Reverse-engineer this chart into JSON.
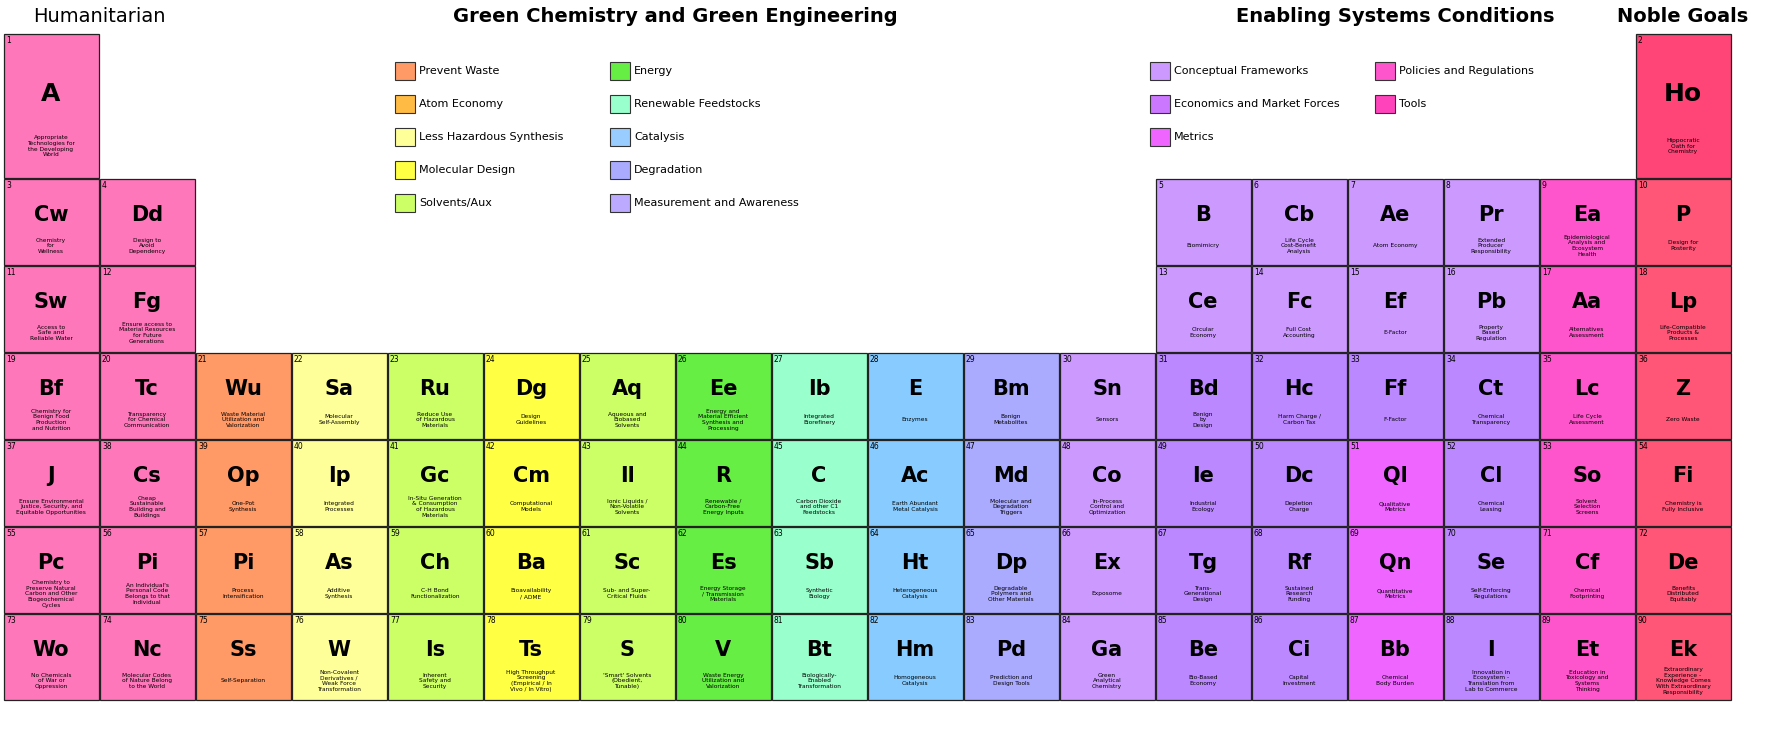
{
  "title_humanitarian": "Humanitarian",
  "title_green": "Green Chemistry and Green Engineering",
  "title_enabling": "Enabling Systems Conditions",
  "title_noble": "Noble Goals",
  "elements": [
    {
      "num": "1",
      "sym": "A",
      "name": "Appropriate\nTechnologies for\nthe Developing\nWorld",
      "color": "#FF77BB",
      "row": 0,
      "col": 0,
      "rowspan": 2
    },
    {
      "num": "2",
      "sym": "Ho",
      "name": "Hippocratic\nOath for\nChemistry",
      "color": "#FF4477",
      "row": 0,
      "col": 17,
      "rowspan": 2
    },
    {
      "num": "3",
      "sym": "Cw",
      "name": "Chemistry\nfor\nWellness",
      "color": "#FF77BB",
      "row": 2,
      "col": 0
    },
    {
      "num": "4",
      "sym": "Dd",
      "name": "Design to\nAvoid\nDependency",
      "color": "#FF77BB",
      "row": 2,
      "col": 1
    },
    {
      "num": "5",
      "sym": "B",
      "name": "Biomimicry",
      "color": "#CC99FF",
      "row": 2,
      "col": 12
    },
    {
      "num": "6",
      "sym": "Cb",
      "name": "Life Cycle\nCost-Benefit\nAnalysis",
      "color": "#CC99FF",
      "row": 2,
      "col": 13
    },
    {
      "num": "7",
      "sym": "Ae",
      "name": "Atom Economy",
      "color": "#CC99FF",
      "row": 2,
      "col": 14
    },
    {
      "num": "8",
      "sym": "Pr",
      "name": "Extended\nProducer\nResponsibility",
      "color": "#CC99FF",
      "row": 2,
      "col": 15
    },
    {
      "num": "9",
      "sym": "Ea",
      "name": "Epidemiological\nAnalysis and\nEcosystem\nHealth",
      "color": "#FF55CC",
      "row": 2,
      "col": 16
    },
    {
      "num": "10",
      "sym": "P",
      "name": "Design for\nPosterity",
      "color": "#FF5577",
      "row": 2,
      "col": 17
    },
    {
      "num": "11",
      "sym": "Sw",
      "name": "Access to\nSafe and\nReliable Water",
      "color": "#FF77BB",
      "row": 3,
      "col": 0
    },
    {
      "num": "12",
      "sym": "Fg",
      "name": "Ensure access to\nMaterial Resources\nfor Future\nGenerations",
      "color": "#FF77BB",
      "row": 3,
      "col": 1
    },
    {
      "num": "13",
      "sym": "Ce",
      "name": "Circular\nEconomy",
      "color": "#CC99FF",
      "row": 3,
      "col": 12
    },
    {
      "num": "14",
      "sym": "Fc",
      "name": "Full Cost\nAccounting",
      "color": "#CC99FF",
      "row": 3,
      "col": 13
    },
    {
      "num": "15",
      "sym": "Ef",
      "name": "E-Factor",
      "color": "#CC99FF",
      "row": 3,
      "col": 14
    },
    {
      "num": "16",
      "sym": "Pb",
      "name": "Property\nBased\nRegulation",
      "color": "#CC99FF",
      "row": 3,
      "col": 15
    },
    {
      "num": "17",
      "sym": "Aa",
      "name": "Alternatives\nAssessment",
      "color": "#FF55CC",
      "row": 3,
      "col": 16
    },
    {
      "num": "18",
      "sym": "Lp",
      "name": "Life-Compatible\nProducts &\nProcesses",
      "color": "#FF5577",
      "row": 3,
      "col": 17
    },
    {
      "num": "19",
      "sym": "Bf",
      "name": "Chemistry for\nBenign Food\nProduction\nand Nutrition",
      "color": "#FF77BB",
      "row": 4,
      "col": 0
    },
    {
      "num": "20",
      "sym": "Tc",
      "name": "Transparency\nfor Chemical\nCommunication",
      "color": "#FF77BB",
      "row": 4,
      "col": 1
    },
    {
      "num": "21",
      "sym": "Wu",
      "name": "Waste Material\nUtilization and\nValorization",
      "color": "#FF9966",
      "row": 4,
      "col": 2
    },
    {
      "num": "22",
      "sym": "Sa",
      "name": "Molecular\nSelf-Assembly",
      "color": "#FFFF99",
      "row": 4,
      "col": 3
    },
    {
      "num": "23",
      "sym": "Ru",
      "name": "Reduce Use\nof Hazardous\nMaterials",
      "color": "#CCFF66",
      "row": 4,
      "col": 4
    },
    {
      "num": "24",
      "sym": "Dg",
      "name": "Design\nGuidelines",
      "color": "#FFFF44",
      "row": 4,
      "col": 5
    },
    {
      "num": "25",
      "sym": "Aq",
      "name": "Aqueous and\nBiobased\nSolvents",
      "color": "#CCFF66",
      "row": 4,
      "col": 6
    },
    {
      "num": "26",
      "sym": "Ee",
      "name": "Energy and\nMaterial Efficient\nSynthesis and\nProcessing",
      "color": "#66EE44",
      "row": 4,
      "col": 7
    },
    {
      "num": "27",
      "sym": "Ib",
      "name": "Integrated\nBiorefinery",
      "color": "#99FFCC",
      "row": 4,
      "col": 8
    },
    {
      "num": "28",
      "sym": "E",
      "name": "Enzymes",
      "color": "#88CCFF",
      "row": 4,
      "col": 9
    },
    {
      "num": "29",
      "sym": "Bm",
      "name": "Benign\nMetabolites",
      "color": "#AAAAFF",
      "row": 4,
      "col": 10
    },
    {
      "num": "30",
      "sym": "Sn",
      "name": "Sensors",
      "color": "#CC99FF",
      "row": 4,
      "col": 11
    },
    {
      "num": "31",
      "sym": "Bd",
      "name": "Benign\nby\nDesign",
      "color": "#BB88FF",
      "row": 4,
      "col": 12
    },
    {
      "num": "32",
      "sym": "Hc",
      "name": "Harm Charge /\nCarbon Tax",
      "color": "#BB88FF",
      "row": 4,
      "col": 13
    },
    {
      "num": "33",
      "sym": "Ff",
      "name": "F-Factor",
      "color": "#BB88FF",
      "row": 4,
      "col": 14
    },
    {
      "num": "34",
      "sym": "Ct",
      "name": "Chemical\nTransparency",
      "color": "#BB88FF",
      "row": 4,
      "col": 15
    },
    {
      "num": "35",
      "sym": "Lc",
      "name": "Life Cycle\nAssessment",
      "color": "#FF55CC",
      "row": 4,
      "col": 16
    },
    {
      "num": "36",
      "sym": "Z",
      "name": "Zero Waste",
      "color": "#FF5577",
      "row": 4,
      "col": 17
    },
    {
      "num": "37",
      "sym": "J",
      "name": "Ensure Environmental\nJustice, Security, and\nEquitable Opportunities",
      "color": "#FF77BB",
      "row": 5,
      "col": 0
    },
    {
      "num": "38",
      "sym": "Cs",
      "name": "Cheap\nSustainable\nBuilding and\nBuildings",
      "color": "#FF77BB",
      "row": 5,
      "col": 1
    },
    {
      "num": "39",
      "sym": "Op",
      "name": "One-Pot\nSynthesis",
      "color": "#FF9966",
      "row": 5,
      "col": 2
    },
    {
      "num": "40",
      "sym": "Ip",
      "name": "Integrated\nProcesses",
      "color": "#FFFF99",
      "row": 5,
      "col": 3
    },
    {
      "num": "41",
      "sym": "Gc",
      "name": "In-Situ Generation\n& Consumption\nof Hazardous\nMaterials",
      "color": "#CCFF66",
      "row": 5,
      "col": 4
    },
    {
      "num": "42",
      "sym": "Cm",
      "name": "Computational\nModels",
      "color": "#FFFF44",
      "row": 5,
      "col": 5
    },
    {
      "num": "43",
      "sym": "Il",
      "name": "Ionic Liquids /\nNon-Volatile\nSolvents",
      "color": "#CCFF66",
      "row": 5,
      "col": 6
    },
    {
      "num": "44",
      "sym": "R",
      "name": "Renewable /\nCarbon-Free\nEnergy Inputs",
      "color": "#66EE44",
      "row": 5,
      "col": 7
    },
    {
      "num": "45",
      "sym": "C",
      "name": "Carbon Dioxide\nand other C1\nFeedstocks",
      "color": "#99FFCC",
      "row": 5,
      "col": 8
    },
    {
      "num": "46",
      "sym": "Ac",
      "name": "Earth Abundant\nMetal Catalysis",
      "color": "#88CCFF",
      "row": 5,
      "col": 9
    },
    {
      "num": "47",
      "sym": "Md",
      "name": "Molecular and\nDegradation\nTriggers",
      "color": "#AAAAFF",
      "row": 5,
      "col": 10
    },
    {
      "num": "48",
      "sym": "Co",
      "name": "In-Process\nControl and\nOptimization",
      "color": "#CC99FF",
      "row": 5,
      "col": 11
    },
    {
      "num": "49",
      "sym": "Ie",
      "name": "Industrial\nEcology",
      "color": "#BB88FF",
      "row": 5,
      "col": 12
    },
    {
      "num": "50",
      "sym": "Dc",
      "name": "Depletion\nCharge",
      "color": "#BB88FF",
      "row": 5,
      "col": 13
    },
    {
      "num": "51",
      "sym": "Ql",
      "name": "Qualitative\nMetrics",
      "color": "#EE66FF",
      "row": 5,
      "col": 14
    },
    {
      "num": "52",
      "sym": "Cl",
      "name": "Chemical\nLeasing",
      "color": "#BB88FF",
      "row": 5,
      "col": 15
    },
    {
      "num": "53",
      "sym": "So",
      "name": "Solvent\nSelection\nScreens",
      "color": "#FF55CC",
      "row": 5,
      "col": 16
    },
    {
      "num": "54",
      "sym": "Fi",
      "name": "Chemistry is\nFully Inclusive",
      "color": "#FF5577",
      "row": 5,
      "col": 17
    },
    {
      "num": "55",
      "sym": "Pc",
      "name": "Chemistry to\nPreserve Natural\nCarbon and Other\nBiogeochemical\nCycles",
      "color": "#FF77BB",
      "row": 6,
      "col": 0
    },
    {
      "num": "56",
      "sym": "Pi",
      "name": "An Individual's\nPersonal Code\nBelongs to that\nIndividual",
      "color": "#FF77BB",
      "row": 6,
      "col": 1
    },
    {
      "num": "57",
      "sym": "Pi",
      "name": "Process\nIntensification",
      "color": "#FF9966",
      "row": 6,
      "col": 2
    },
    {
      "num": "58",
      "sym": "As",
      "name": "Additive\nSynthesis",
      "color": "#FFFF99",
      "row": 6,
      "col": 3
    },
    {
      "num": "59",
      "sym": "Ch",
      "name": "C-H Bond\nFunctionalization",
      "color": "#CCFF66",
      "row": 6,
      "col": 4
    },
    {
      "num": "60",
      "sym": "Ba",
      "name": "Bioavailability\n/ ADME",
      "color": "#FFFF44",
      "row": 6,
      "col": 5
    },
    {
      "num": "61",
      "sym": "Sc",
      "name": "Sub- and Super-\nCritical Fluids",
      "color": "#CCFF66",
      "row": 6,
      "col": 6
    },
    {
      "num": "62",
      "sym": "Es",
      "name": "Energy Storage\n/ Transmission\nMaterials",
      "color": "#66EE44",
      "row": 6,
      "col": 7
    },
    {
      "num": "63",
      "sym": "Sb",
      "name": "Synthetic\nBiology",
      "color": "#99FFCC",
      "row": 6,
      "col": 8
    },
    {
      "num": "64",
      "sym": "Ht",
      "name": "Heterogeneous\nCatalysis",
      "color": "#88CCFF",
      "row": 6,
      "col": 9
    },
    {
      "num": "65",
      "sym": "Dp",
      "name": "Degradable\nPolymers and\nOther Materials",
      "color": "#AAAAFF",
      "row": 6,
      "col": 10
    },
    {
      "num": "66",
      "sym": "Ex",
      "name": "Exposome",
      "color": "#CC99FF",
      "row": 6,
      "col": 11
    },
    {
      "num": "67",
      "sym": "Tg",
      "name": "Trans-\nGenerational\nDesign",
      "color": "#BB88FF",
      "row": 6,
      "col": 12
    },
    {
      "num": "68",
      "sym": "Rf",
      "name": "Sustained\nResearch\nFunding",
      "color": "#BB88FF",
      "row": 6,
      "col": 13
    },
    {
      "num": "69",
      "sym": "Qn",
      "name": "Quantitative\nMetrics",
      "color": "#EE66FF",
      "row": 6,
      "col": 14
    },
    {
      "num": "70",
      "sym": "Se",
      "name": "Self-Enforcing\nRegulations",
      "color": "#BB88FF",
      "row": 6,
      "col": 15
    },
    {
      "num": "71",
      "sym": "Cf",
      "name": "Chemical\nFootprinting",
      "color": "#FF55CC",
      "row": 6,
      "col": 16
    },
    {
      "num": "72",
      "sym": "De",
      "name": "Benefits\nDistributed\nEquitably",
      "color": "#FF5577",
      "row": 6,
      "col": 17
    },
    {
      "num": "73",
      "sym": "Wo",
      "name": "No Chemicals\nof War or\nOppression",
      "color": "#FF77BB",
      "row": 7,
      "col": 0
    },
    {
      "num": "74",
      "sym": "Nc",
      "name": "Molecular Codes\nof Nature Belong\nto the World",
      "color": "#FF77BB",
      "row": 7,
      "col": 1
    },
    {
      "num": "75",
      "sym": "Ss",
      "name": "Self-Separation",
      "color": "#FF9966",
      "row": 7,
      "col": 2
    },
    {
      "num": "76",
      "sym": "W",
      "name": "Non-Covalent\nDerivatives /\nWeak Force\nTransformation",
      "color": "#FFFF99",
      "row": 7,
      "col": 3
    },
    {
      "num": "77",
      "sym": "Is",
      "name": "Inherent\nSafety and\nSecurity",
      "color": "#CCFF66",
      "row": 7,
      "col": 4
    },
    {
      "num": "78",
      "sym": "Ts",
      "name": "High Throughput\nScreening\n(Empirical / In\nVivo / In Vitro)",
      "color": "#FFFF44",
      "row": 7,
      "col": 5
    },
    {
      "num": "79",
      "sym": "S",
      "name": "'Smart' Solvents\n(Obedient,\nTunable)",
      "color": "#CCFF66",
      "row": 7,
      "col": 6
    },
    {
      "num": "80",
      "sym": "V",
      "name": "Waste Energy\nUtilization and\nValorization",
      "color": "#66EE44",
      "row": 7,
      "col": 7
    },
    {
      "num": "81",
      "sym": "Bt",
      "name": "Biologically-\nEnabled\nTransformation",
      "color": "#99FFCC",
      "row": 7,
      "col": 8
    },
    {
      "num": "82",
      "sym": "Hm",
      "name": "Homogeneous\nCatalysis",
      "color": "#88CCFF",
      "row": 7,
      "col": 9
    },
    {
      "num": "83",
      "sym": "Pd",
      "name": "Prediction and\nDesign Tools",
      "color": "#AAAAFF",
      "row": 7,
      "col": 10
    },
    {
      "num": "84",
      "sym": "Ga",
      "name": "Green\nAnalytical\nChemistry",
      "color": "#CC99FF",
      "row": 7,
      "col": 11
    },
    {
      "num": "85",
      "sym": "Be",
      "name": "Bio-Based\nEconomy",
      "color": "#BB88FF",
      "row": 7,
      "col": 12
    },
    {
      "num": "86",
      "sym": "Ci",
      "name": "Capital\nInvestment",
      "color": "#BB88FF",
      "row": 7,
      "col": 13
    },
    {
      "num": "87",
      "sym": "Bb",
      "name": "Chemical\nBody Burden",
      "color": "#EE66FF",
      "row": 7,
      "col": 14
    },
    {
      "num": "88",
      "sym": "I",
      "name": "Innovation in\nEcosystem -\nTranslation from\nLab to Commerce",
      "color": "#BB88FF",
      "row": 7,
      "col": 15
    },
    {
      "num": "89",
      "sym": "Et",
      "name": "Education in\nToxicology and\nSystems\nThinking",
      "color": "#FF55CC",
      "row": 7,
      "col": 16
    },
    {
      "num": "90",
      "sym": "Ek",
      "name": "Extraordinary\nExperience -\nKnowledge Comes\nWith Extraordinary\nResponsibility",
      "color": "#FF5577",
      "row": 7,
      "col": 17
    }
  ],
  "legend_green": [
    {
      "color": "#FF9966",
      "label": "Prevent Waste"
    },
    {
      "color": "#FFBB44",
      "label": "Atom Economy"
    },
    {
      "color": "#FFFF99",
      "label": "Less Hazardous Synthesis"
    },
    {
      "color": "#FFFF44",
      "label": "Molecular Design"
    },
    {
      "color": "#CCFF66",
      "label": "Solvents/Aux"
    },
    {
      "color": "#66EE44",
      "label": "Energy"
    },
    {
      "color": "#99FFCC",
      "label": "Renewable Feedstocks"
    },
    {
      "color": "#99CCFF",
      "label": "Catalysis"
    },
    {
      "color": "#AAAAFF",
      "label": "Degradation"
    },
    {
      "color": "#BBAAFF",
      "label": "Measurement and Awareness"
    }
  ],
  "legend_enabling": [
    {
      "color": "#CC99FF",
      "label": "Conceptual Frameworks"
    },
    {
      "color": "#CC77FF",
      "label": "Economics and Market Forces"
    },
    {
      "color": "#EE66FF",
      "label": "Metrics"
    },
    {
      "color": "#FF55CC",
      "label": "Policies and Regulations"
    },
    {
      "color": "#FF44BB",
      "label": "Tools"
    }
  ]
}
